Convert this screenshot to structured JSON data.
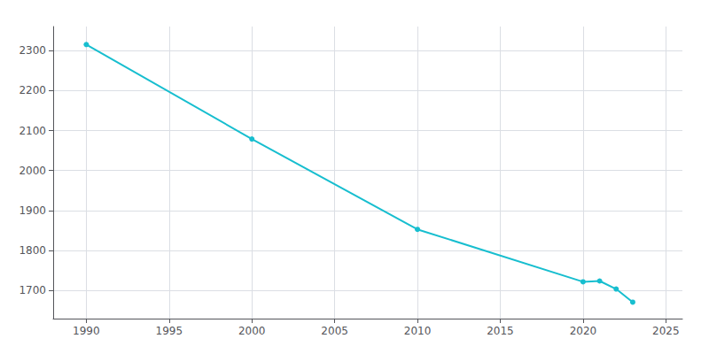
{
  "chart_data": {
    "type": "line",
    "x": [
      1990,
      2000,
      2010,
      2020,
      2021,
      2022,
      2023
    ],
    "values": [
      2315,
      2079,
      1853,
      1722,
      1724,
      1704,
      1671
    ],
    "color": "#17BECF",
    "marker": "circle",
    "xlim": [
      1988,
      2026
    ],
    "ylim": [
      1630,
      2360
    ],
    "xticks": [
      1990,
      1995,
      2000,
      2005,
      2010,
      2015,
      2020,
      2025
    ],
    "yticks": [
      1700,
      1800,
      1900,
      2000,
      2100,
      2200,
      2300
    ],
    "grid": true
  }
}
